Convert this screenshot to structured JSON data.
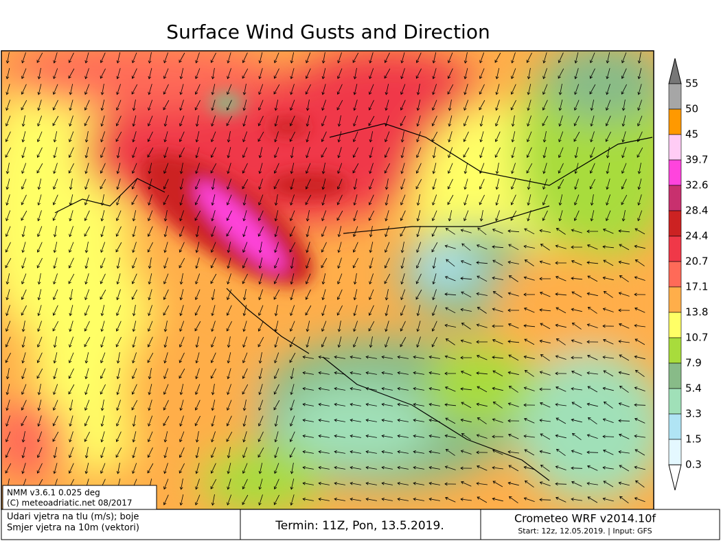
{
  "title": "Surface Wind Gusts and Direction",
  "legend": {
    "levels": [
      55,
      50,
      45,
      39.7,
      32.6,
      28.4,
      24.4,
      20.7,
      17.1,
      13.8,
      10.7,
      7.9,
      5.4,
      3.3,
      1.5,
      0.3
    ],
    "colors": [
      "#777777",
      "#a6a6a6",
      "#ff9900",
      "#ffccf5",
      "#ff44dd",
      "#c8306e",
      "#cc2222",
      "#f03848",
      "#ff6a58",
      "#ffae4a",
      "#ffff66",
      "#a8dc3c",
      "#88bb88",
      "#a0e0b8",
      "#b0e4f4",
      "#e4f8ff",
      "#ffffff"
    ]
  },
  "model_box": {
    "line1": "NMM v3.6.1 0.025 deg",
    "line2": "(C) meteoadriatic.net 08/2017"
  },
  "footer": {
    "description": [
      "Udari vjetra na tlu (m/s); boje",
      "Smjer vjetra na 10m (vektori)"
    ],
    "termin": "Termin: 11Z, Pon, 13.5.2019.",
    "model": "Crometeo WRF v2014.10f",
    "start": "Start: 12z, 12.05.2019. | Input: GFS"
  }
}
